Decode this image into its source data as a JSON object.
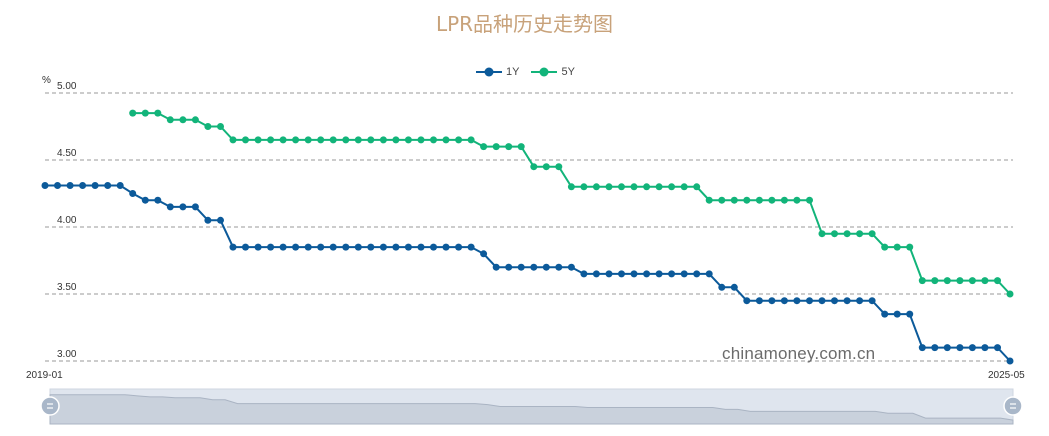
{
  "title": "LPR品种历史走势图",
  "watermark": "chinamoney.com.cn",
  "colors": {
    "1Y": "#0c5a9a",
    "5Y": "#12b47a",
    "title": "#c8a27a",
    "grid": "#999999"
  },
  "chart_data": {
    "type": "line",
    "ylabel": "%",
    "ylim": [
      3.0,
      5.0
    ],
    "yticks": [
      "3.00",
      "3.50",
      "4.00",
      "4.50",
      "5.00"
    ],
    "x_start_label": "2019-01",
    "x_end_label": "2025-05",
    "legend_position": "top-center",
    "grid": true,
    "series": [
      {
        "name": "1Y",
        "values": [
          4.31,
          4.31,
          4.31,
          4.31,
          4.31,
          4.31,
          4.31,
          4.25,
          4.2,
          4.2,
          4.15,
          4.15,
          4.15,
          4.05,
          4.05,
          3.85,
          3.85,
          3.85,
          3.85,
          3.85,
          3.85,
          3.85,
          3.85,
          3.85,
          3.85,
          3.85,
          3.85,
          3.85,
          3.85,
          3.85,
          3.85,
          3.85,
          3.85,
          3.85,
          3.85,
          3.8,
          3.7,
          3.7,
          3.7,
          3.7,
          3.7,
          3.7,
          3.7,
          3.65,
          3.65,
          3.65,
          3.65,
          3.65,
          3.65,
          3.65,
          3.65,
          3.65,
          3.65,
          3.65,
          3.55,
          3.55,
          3.45,
          3.45,
          3.45,
          3.45,
          3.45,
          3.45,
          3.45,
          3.45,
          3.45,
          3.45,
          3.45,
          3.35,
          3.35,
          3.35,
          3.1,
          3.1,
          3.1,
          3.1,
          3.1,
          3.1,
          3.1,
          3.0
        ]
      },
      {
        "name": "5Y",
        "offset": 7,
        "values": [
          4.85,
          4.85,
          4.85,
          4.8,
          4.8,
          4.8,
          4.75,
          4.75,
          4.65,
          4.65,
          4.65,
          4.65,
          4.65,
          4.65,
          4.65,
          4.65,
          4.65,
          4.65,
          4.65,
          4.65,
          4.65,
          4.65,
          4.65,
          4.65,
          4.65,
          4.65,
          4.65,
          4.65,
          4.6,
          4.6,
          4.6,
          4.6,
          4.45,
          4.45,
          4.45,
          4.3,
          4.3,
          4.3,
          4.3,
          4.3,
          4.3,
          4.3,
          4.3,
          4.3,
          4.3,
          4.3,
          4.2,
          4.2,
          4.2,
          4.2,
          4.2,
          4.2,
          4.2,
          4.2,
          4.2,
          3.95,
          3.95,
          3.95,
          3.95,
          3.95,
          3.85,
          3.85,
          3.85,
          3.6,
          3.6,
          3.6,
          3.6,
          3.6,
          3.6,
          3.6,
          3.5
        ]
      }
    ]
  }
}
